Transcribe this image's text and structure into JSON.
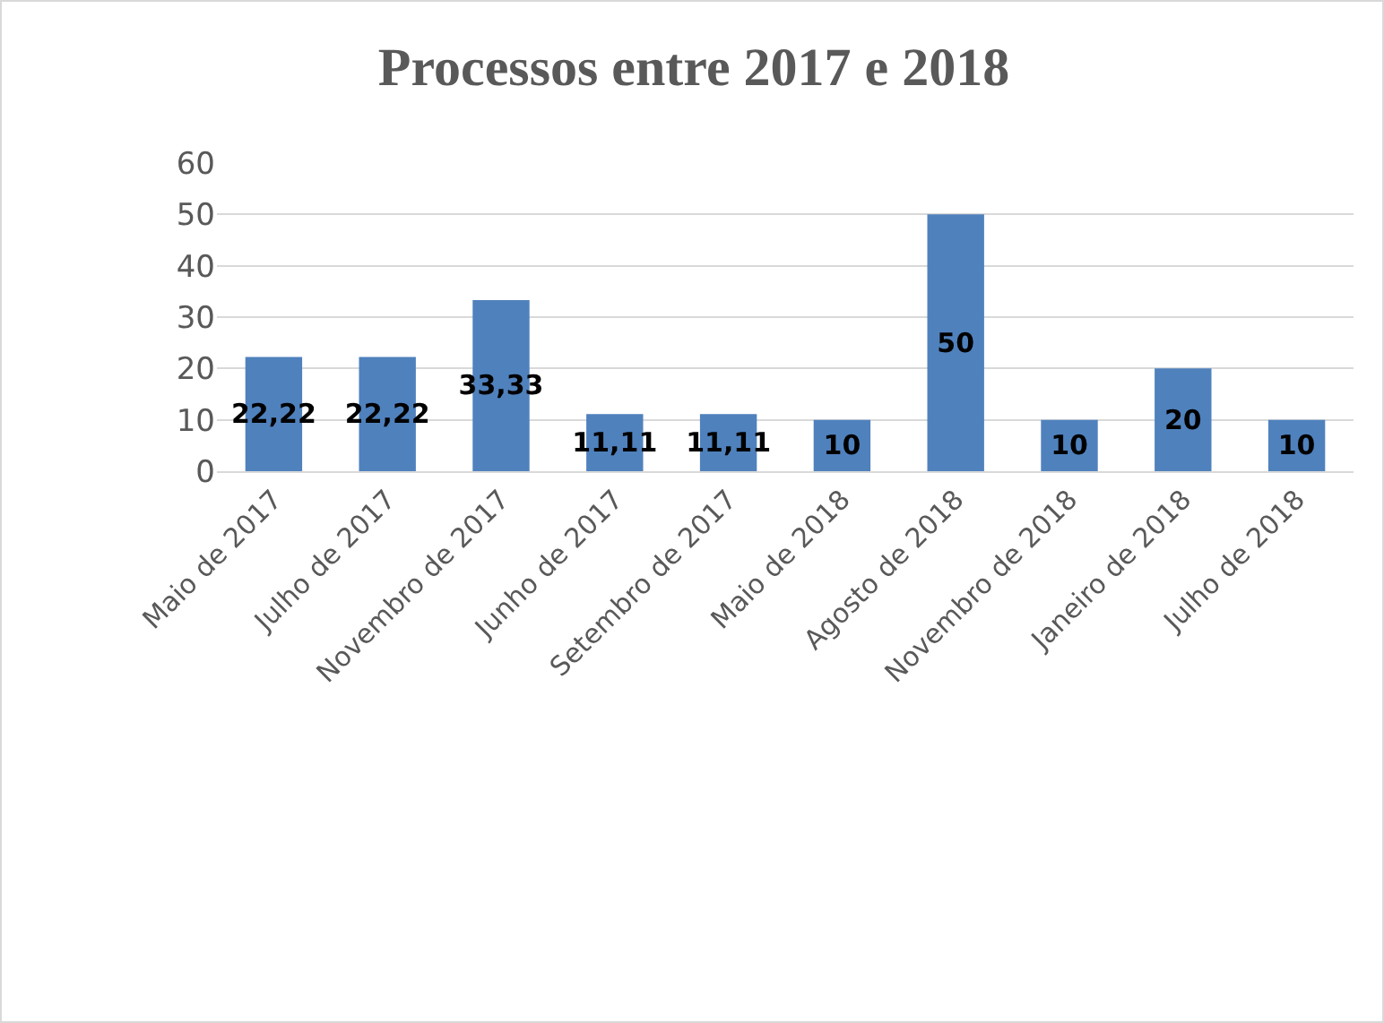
{
  "chart_data": {
    "type": "bar",
    "title": "Processos entre 2017 e 2018",
    "categories": [
      "Maio de 2017",
      "Julho de 2017",
      "Novembro de 2017",
      "Junho de 2017",
      "Setembro de 2017",
      "Maio de 2018",
      "Agosto de 2018",
      "Novembro de 2018",
      "Janeiro de 2018",
      "Julho de 2018"
    ],
    "values": [
      22.22,
      22.22,
      33.33,
      11.11,
      11.11,
      10,
      50,
      10,
      20,
      10
    ],
    "value_labels": [
      "22,22",
      "22,22",
      "33,33",
      "11,11",
      "11,11",
      "10",
      "50",
      "10",
      "20",
      "10"
    ],
    "color": "#4f81bd",
    "ylim": [
      0,
      60
    ],
    "yticks": [
      0,
      10,
      20,
      30,
      40,
      50,
      60
    ],
    "grid": "y"
  }
}
